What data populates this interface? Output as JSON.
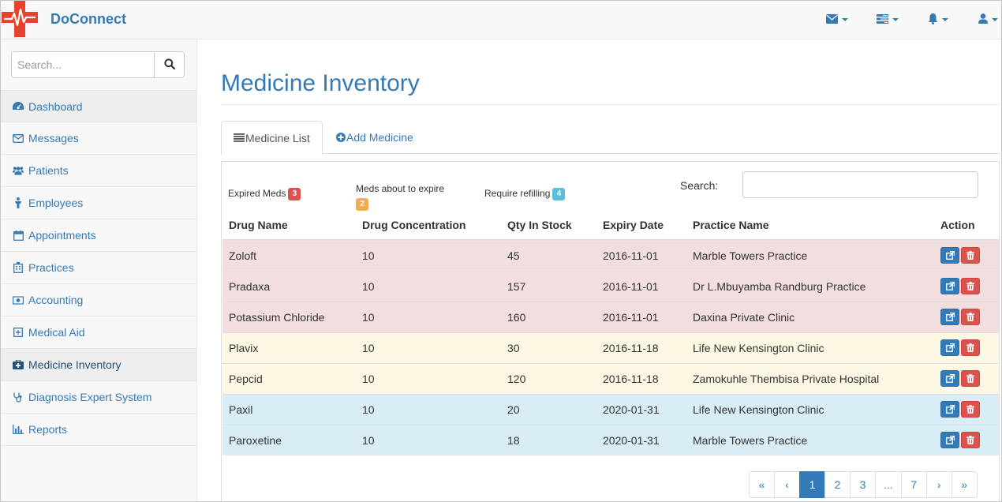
{
  "app": {
    "brand": "DoConnect"
  },
  "navbar": {
    "icons": [
      {
        "name": "envelope-icon"
      },
      {
        "name": "tasks-icon"
      },
      {
        "name": "bell-icon"
      },
      {
        "name": "user-icon"
      }
    ]
  },
  "sidebar": {
    "search_placeholder": "Search...",
    "items": [
      {
        "label": "Dashboard",
        "icon": "dashboard-icon",
        "active": true
      },
      {
        "label": "Messages",
        "icon": "envelope-icon"
      },
      {
        "label": "Patients",
        "icon": "users-icon"
      },
      {
        "label": "Employees",
        "icon": "person-icon"
      },
      {
        "label": "Appointments",
        "icon": "calendar-icon"
      },
      {
        "label": "Practices",
        "icon": "hospital-icon"
      },
      {
        "label": "Accounting",
        "icon": "money-icon"
      },
      {
        "label": "Medical Aid",
        "icon": "plus-square-icon"
      },
      {
        "label": "Medicine Inventory",
        "icon": "medkit-icon",
        "active": true
      },
      {
        "label": "Diagnosis Expert System",
        "icon": "stethoscope-icon"
      },
      {
        "label": "Reports",
        "icon": "bar-chart-icon"
      }
    ]
  },
  "main": {
    "title": "Medicine Inventory",
    "tabs": [
      {
        "label": "Medicine List"
      },
      {
        "label": "Add Medicine"
      }
    ],
    "legend": {
      "expired_label": "Expired Meds",
      "expired_count": "3",
      "expiring_label": "Meds about to expire",
      "expiring_count": "2",
      "refill_label": "Require refilling",
      "refill_count": "4"
    },
    "search_label": "Search:",
    "table": {
      "headers": [
        "Drug Name",
        "Drug Concentration",
        "Qty In Stock",
        "Expiry Date",
        "Practice Name",
        "Action"
      ],
      "rows": [
        {
          "drug": "Zoloft",
          "conc": "10",
          "qty": "45",
          "expiry": "2016-11-01",
          "practice": "Marble Towers Practice",
          "status": "danger"
        },
        {
          "drug": "Pradaxa",
          "conc": "10",
          "qty": "157",
          "expiry": "2016-11-01",
          "practice": "Dr L.Mbuyamba Randburg Practice",
          "status": "danger"
        },
        {
          "drug": "Potassium Chloride",
          "conc": "10",
          "qty": "160",
          "expiry": "2016-11-01",
          "practice": "Daxina Private Clinic",
          "status": "danger"
        },
        {
          "drug": "Plavix",
          "conc": "10",
          "qty": "30",
          "expiry": "2016-11-18",
          "practice": "Life New Kensington Clinic",
          "status": "warning"
        },
        {
          "drug": "Pepcid",
          "conc": "10",
          "qty": "120",
          "expiry": "2016-11-18",
          "practice": "Zamokuhle Thembisa Private Hospital",
          "status": "warning"
        },
        {
          "drug": "Paxil",
          "conc": "10",
          "qty": "20",
          "expiry": "2020-01-31",
          "practice": "Life New Kensington Clinic",
          "status": "info"
        },
        {
          "drug": "Paroxetine",
          "conc": "10",
          "qty": "18",
          "expiry": "2020-01-31",
          "practice": "Marble Towers Practice",
          "status": "info"
        }
      ]
    },
    "pagination": [
      "«",
      "‹",
      "1",
      "2",
      "3",
      "...",
      "7",
      "›",
      "»"
    ],
    "pagination_active": "1"
  },
  "colors": {
    "primary": "#337ab7",
    "danger_badge": "#d9534f",
    "warning_badge": "#f0ad4e",
    "info_badge": "#5bc0de",
    "row_danger": "#f2dede",
    "row_warning": "#fcf8e3",
    "row_info": "#d9edf7"
  }
}
